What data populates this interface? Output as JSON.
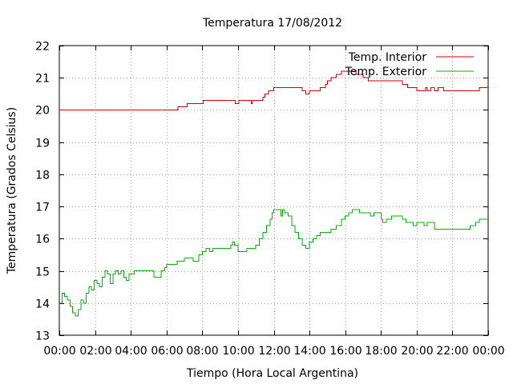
{
  "chart_data": {
    "type": "line",
    "title": "Temperatura 17/08/2012",
    "xlabel": "Tiempo (Hora Local Argentina)",
    "ylabel": "Temperatura (Grados Celsius)",
    "xlim": [
      "00:00",
      "24:00"
    ],
    "ylim": [
      13,
      22
    ],
    "x_ticks": [
      "00:00",
      "02:00",
      "04:00",
      "06:00",
      "08:00",
      "10:00",
      "12:00",
      "14:00",
      "16:00",
      "18:00",
      "20:00",
      "22:00",
      "00:00"
    ],
    "y_ticks": [
      "13",
      "14",
      "15",
      "16",
      "17",
      "18",
      "19",
      "20",
      "21",
      "22"
    ],
    "grid": true,
    "legend_position": "top-right",
    "x_unit": "hours",
    "series": [
      {
        "name": "Temp. Interior",
        "color": "#cc0000",
        "x": [
          0,
          6.6,
          6.65,
          7.1,
          7.15,
          8.0,
          8.05,
          9.8,
          9.85,
          10.0,
          10.05,
          10.6,
          10.75,
          10.8,
          10.9,
          11.4,
          11.5,
          11.7,
          12.0,
          12.5,
          13.5,
          13.6,
          13.8,
          14.0,
          14.5,
          14.6,
          14.9,
          15.0,
          15.2,
          15.5,
          15.8,
          16.5,
          16.6,
          17.0,
          17.3,
          17.4,
          17.6,
          18.0,
          19.0,
          19.2,
          19.5,
          19.8,
          20.0,
          20.3,
          20.5,
          20.6,
          20.7,
          20.8,
          21.0,
          21.1,
          21.2,
          21.5,
          22.0,
          22.5,
          23.0,
          23.5,
          24.0
        ],
        "values": [
          20.0,
          20.0,
          20.1,
          20.1,
          20.2,
          20.2,
          20.3,
          20.3,
          20.2,
          20.2,
          20.3,
          20.3,
          20.2,
          20.3,
          20.3,
          20.4,
          20.5,
          20.6,
          20.7,
          20.7,
          20.7,
          20.6,
          20.5,
          20.6,
          20.6,
          20.7,
          20.8,
          20.9,
          21.0,
          21.1,
          21.2,
          21.2,
          21.1,
          21.0,
          20.9,
          20.9,
          20.9,
          20.9,
          20.9,
          20.8,
          20.7,
          20.7,
          20.6,
          20.6,
          20.7,
          20.6,
          20.6,
          20.7,
          20.6,
          20.6,
          20.7,
          20.6,
          20.6,
          20.6,
          20.6,
          20.7,
          20.7
        ]
      },
      {
        "name": "Temp. Exterior",
        "color": "#00b000",
        "x": [
          0,
          0.15,
          0.3,
          0.45,
          0.6,
          0.75,
          0.9,
          1.05,
          1.2,
          1.35,
          1.5,
          1.65,
          1.8,
          1.95,
          2.1,
          2.25,
          2.4,
          2.55,
          2.7,
          2.85,
          3.0,
          3.15,
          3.3,
          3.45,
          3.6,
          3.75,
          3.9,
          4.05,
          4.2,
          4.5,
          4.8,
          5.2,
          5.3,
          5.5,
          5.7,
          5.9,
          6.0,
          6.4,
          6.6,
          6.8,
          7.0,
          7.2,
          7.5,
          7.8,
          8.0,
          8.2,
          8.4,
          8.6,
          9.0,
          9.4,
          9.6,
          9.7,
          9.8,
          10.0,
          10.3,
          10.5,
          10.7,
          11.0,
          11.2,
          11.4,
          11.6,
          11.8,
          11.9,
          12.0,
          12.2,
          12.4,
          12.5,
          12.6,
          12.8,
          13.0,
          13.2,
          13.4,
          13.6,
          13.8,
          14.0,
          14.2,
          14.4,
          14.6,
          14.8,
          15.0,
          15.2,
          15.5,
          15.8,
          16.0,
          16.2,
          16.4,
          16.6,
          16.8,
          17.0,
          17.2,
          17.4,
          17.6,
          17.8,
          18.0,
          18.1,
          18.3,
          18.6,
          19.0,
          19.2,
          19.4,
          19.6,
          19.8,
          20.0,
          20.2,
          20.4,
          20.6,
          21.0,
          21.5,
          22.0,
          22.5,
          22.9,
          23.0,
          23.3,
          23.5,
          24.0
        ],
        "values": [
          14.0,
          14.3,
          14.2,
          14.1,
          13.9,
          13.7,
          13.6,
          13.8,
          14.1,
          14.0,
          14.3,
          14.5,
          14.4,
          14.7,
          14.6,
          14.5,
          14.8,
          15.0,
          14.9,
          14.6,
          14.9,
          15.0,
          14.9,
          15.0,
          14.8,
          14.7,
          14.9,
          14.9,
          15.0,
          15.0,
          15.0,
          15.0,
          14.8,
          14.8,
          15.0,
          15.1,
          15.2,
          15.2,
          15.3,
          15.3,
          15.4,
          15.4,
          15.3,
          15.5,
          15.6,
          15.7,
          15.6,
          15.7,
          15.7,
          15.7,
          15.8,
          15.9,
          15.8,
          15.6,
          15.6,
          15.7,
          15.7,
          15.8,
          16.0,
          16.2,
          16.4,
          16.6,
          16.8,
          16.9,
          16.9,
          16.7,
          16.9,
          16.8,
          16.7,
          16.4,
          16.2,
          16.0,
          15.8,
          15.7,
          15.9,
          16.0,
          16.1,
          16.2,
          16.2,
          16.2,
          16.3,
          16.4,
          16.6,
          16.7,
          16.8,
          16.9,
          16.9,
          16.8,
          16.8,
          16.8,
          16.7,
          16.8,
          16.8,
          16.6,
          16.5,
          16.6,
          16.7,
          16.7,
          16.6,
          16.5,
          16.5,
          16.4,
          16.5,
          16.5,
          16.4,
          16.5,
          16.3,
          16.3,
          16.3,
          16.3,
          16.3,
          16.4,
          16.5,
          16.6,
          16.6
        ]
      }
    ]
  }
}
